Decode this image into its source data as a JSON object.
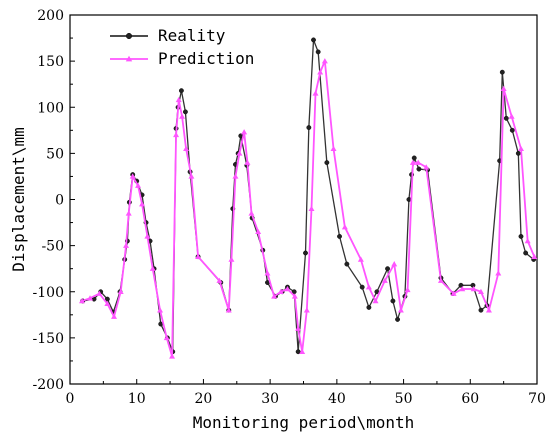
{
  "chart_data": {
    "type": "line",
    "xlabel": "Monitoring period\\month",
    "ylabel": "Displacement\\mm",
    "xlim": [
      0,
      70
    ],
    "ylim": [
      -200,
      200
    ],
    "xticks": [
      0,
      10,
      20,
      30,
      40,
      50,
      60,
      70
    ],
    "yticks": [
      -200,
      -150,
      -100,
      -50,
      0,
      50,
      100,
      150,
      200
    ],
    "grid": false,
    "legend_position": "top-left",
    "series": [
      {
        "name": "Reality",
        "color": "#333333",
        "marker": "circle",
        "x": [
          1.9,
          3.6,
          4.6,
          5.6,
          6.5,
          7.5,
          8.2,
          8.6,
          8.9,
          9.4,
          10.0,
          10.8,
          11.4,
          12.0,
          12.6,
          13.6,
          14.6,
          15.4,
          15.9,
          16.2,
          16.7,
          17.3,
          18.0,
          19.2,
          22.6,
          23.8,
          24.4,
          24.8,
          25.2,
          25.6,
          26.5,
          27.3,
          28.9,
          29.6,
          30.8,
          31.8,
          32.6,
          33.6,
          34.2,
          35.3,
          35.8,
          36.5,
          37.2,
          38.5,
          40.4,
          41.5,
          43.8,
          44.8,
          46.0,
          47.6,
          48.4,
          49.1,
          50.2,
          50.8,
          51.2,
          51.6,
          52.3,
          53.6,
          55.6,
          57.4,
          58.6,
          60.4,
          61.6,
          62.5,
          64.4,
          64.8,
          65.4,
          66.3,
          67.2,
          67.6,
          68.3,
          69.5
        ],
        "y": [
          -110,
          -108,
          -100,
          -108,
          -122,
          -100,
          -65,
          -45,
          -3,
          27,
          20,
          5,
          -25,
          -45,
          -75,
          -135,
          -150,
          -165,
          77,
          100,
          118,
          95,
          30,
          -62,
          -90,
          -120,
          -10,
          38,
          50,
          69,
          37,
          -20,
          -55,
          -90,
          -105,
          -100,
          -95,
          -100,
          -165,
          -58,
          78,
          173,
          160,
          40,
          -40,
          -70,
          -95,
          -117,
          -100,
          -75,
          -110,
          -130,
          -105,
          0,
          27,
          45,
          33,
          32,
          -85,
          -102,
          -93,
          -93,
          -120,
          -115,
          42,
          138,
          88,
          75,
          50,
          -40,
          -58,
          -65
        ]
      },
      {
        "name": "Prediction",
        "color": "#ff55ff",
        "marker": "triangle",
        "x": [
          1.8,
          3.0,
          4.4,
          5.6,
          6.6,
          7.6,
          8.4,
          8.8,
          9.4,
          10.2,
          10.8,
          11.6,
          12.4,
          13.5,
          14.5,
          15.3,
          15.9,
          16.3,
          16.8,
          17.4,
          18.2,
          19.2,
          22.4,
          23.8,
          24.2,
          24.8,
          25.4,
          26.1,
          26.6,
          27.2,
          28.2,
          29.6,
          30.6,
          31.6,
          32.6,
          33.7,
          34.2,
          34.8,
          35.5,
          36.2,
          36.8,
          37.5,
          38.2,
          39.5,
          41.2,
          43.6,
          44.8,
          45.8,
          47.2,
          48.6,
          49.6,
          50.6,
          51.4,
          52.2,
          53.4,
          55.6,
          57.5,
          58.8,
          60.5,
          61.6,
          62.8,
          64.2,
          65.0,
          66.2,
          67.6,
          68.6,
          69.6
        ],
        "y": [
          -110,
          -107,
          -102,
          -113,
          -127,
          -100,
          -50,
          -15,
          25,
          15,
          -5,
          -40,
          -75,
          -120,
          -150,
          -170,
          70,
          108,
          90,
          55,
          25,
          -62,
          -88,
          -120,
          -65,
          25,
          50,
          73,
          40,
          -15,
          -35,
          -80,
          -105,
          -100,
          -97,
          -105,
          -140,
          -165,
          -120,
          -10,
          115,
          138,
          150,
          55,
          -30,
          -65,
          -95,
          -110,
          -88,
          -70,
          -120,
          -98,
          40,
          40,
          35,
          -88,
          -102,
          -97,
          -97,
          -100,
          -120,
          -80,
          120,
          90,
          55,
          -45,
          -62
        ]
      }
    ]
  }
}
